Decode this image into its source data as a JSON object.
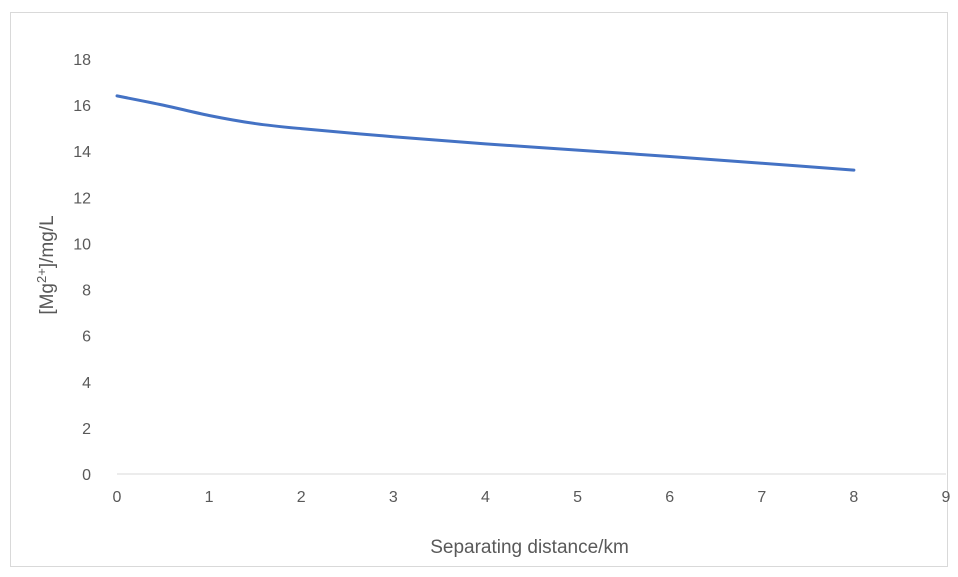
{
  "chart_data": {
    "type": "line",
    "title": "",
    "xlabel": "Separating distance/km",
    "ylabel": {
      "prefix": "[Mg",
      "sup": "2+",
      "suffix": "]/mg/L"
    },
    "xlim": [
      0,
      9
    ],
    "ylim": [
      0,
      18
    ],
    "xticks": [
      "0",
      "1",
      "2",
      "3",
      "4",
      "5",
      "6",
      "7",
      "8",
      "9"
    ],
    "yticks": [
      "0",
      "2",
      "4",
      "6",
      "8",
      "10",
      "12",
      "14",
      "16",
      "18"
    ],
    "grid": false,
    "legend": "none",
    "series": [
      {
        "color": "#4472c4",
        "x": [
          0,
          0.5,
          1,
          1.5,
          2,
          3,
          4,
          5,
          6,
          7,
          8
        ],
        "y": [
          16.4,
          16.0,
          15.55,
          15.2,
          14.98,
          14.63,
          14.32,
          14.05,
          13.77,
          13.48,
          13.18
        ]
      }
    ]
  }
}
